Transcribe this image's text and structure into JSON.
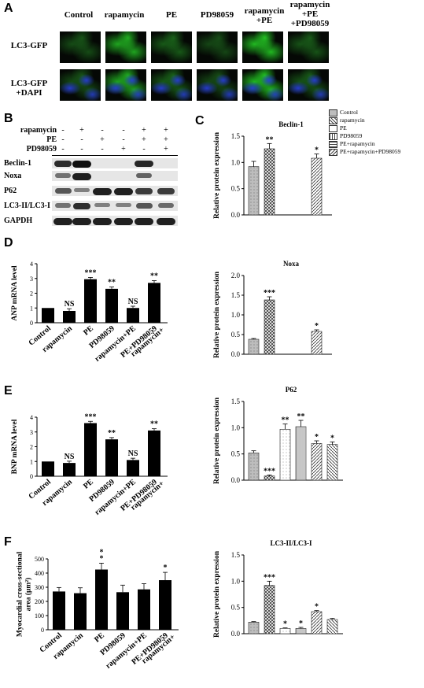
{
  "panels": {
    "A": "A",
    "B": "B",
    "C": "C",
    "D": "D",
    "E": "E",
    "F": "F"
  },
  "panelA": {
    "columns": [
      "Control",
      "rapamycin",
      "PE",
      "PD98059",
      "rapamycin\n+PE",
      "rapamycin\n+PE\n+PD98059"
    ],
    "rows": [
      "LC3-GFP",
      "LC3-GFP\n+DAPI"
    ]
  },
  "panelB": {
    "treatments": [
      {
        "name": "rapamycin",
        "signs": [
          "-",
          "+",
          "-",
          "-",
          "+",
          "+"
        ]
      },
      {
        "name": "PE",
        "signs": [
          "-",
          "-",
          "+",
          "-",
          "+",
          "+"
        ]
      },
      {
        "name": "PD98059",
        "signs": [
          "-",
          "-",
          "-",
          "+",
          "-",
          "+"
        ]
      }
    ],
    "bands": [
      "Beclin-1",
      "Noxa",
      "P62",
      "LC3-II/LC3-I",
      "GAPDH"
    ]
  },
  "legend": {
    "items": [
      "Control",
      "rapamycin",
      "PE",
      "PD98059",
      "PE+rapamycin",
      "PE+rapamycin+PD98059"
    ],
    "colors": [
      "#bdbdbd",
      "#666666",
      "#ffffff",
      "#ffffff",
      "#ffffff",
      "#ffffff"
    ]
  },
  "chart_data": [
    {
      "id": "C-beclin",
      "type": "bar",
      "title": "Beclin-1",
      "ylabel": "Relative protein expression",
      "ylim": [
        0,
        1.5
      ],
      "yticks": [
        "0.0",
        "0.5",
        "1.0",
        "1.5"
      ],
      "categories": [
        "Control",
        "rapamycin",
        "PE",
        "PD98059",
        "PE+rapamycin",
        "PE+rapamycin+PD98059"
      ],
      "values": [
        0.92,
        1.26,
        0,
        0,
        1.08,
        0
      ],
      "errors": [
        0.1,
        0.1,
        0,
        0,
        0.08,
        0
      ],
      "significance": [
        "",
        "**",
        "",
        "",
        "*",
        ""
      ]
    },
    {
      "id": "C-noxa",
      "type": "bar",
      "title": "Noxa",
      "ylabel": "Relative protein expression",
      "ylim": [
        0,
        2.0
      ],
      "yticks": [
        "0.0",
        "0.5",
        "1.0",
        "1.5",
        "2.0"
      ],
      "categories": [
        "Control",
        "rapamycin",
        "PE",
        "PD98059",
        "PE+rapamycin",
        "PE+rapamycin+PD98059"
      ],
      "values": [
        0.38,
        1.38,
        0,
        0,
        0.58,
        0
      ],
      "errors": [
        0.02,
        0.08,
        0,
        0,
        0.04,
        0
      ],
      "significance": [
        "",
        "***",
        "",
        "",
        "*",
        ""
      ]
    },
    {
      "id": "C-p62",
      "type": "bar",
      "title": "P62",
      "ylabel": "Relative protein expression",
      "ylim": [
        0,
        1.5
      ],
      "yticks": [
        "0.0",
        "0.5",
        "1.0",
        "1.5"
      ],
      "categories": [
        "Control",
        "rapamycin",
        "PE",
        "PD98059",
        "PE+rapamycin",
        "PE+rapamycin+PD98059"
      ],
      "values": [
        0.52,
        0.08,
        0.97,
        1.02,
        0.7,
        0.68
      ],
      "errors": [
        0.04,
        0.02,
        0.1,
        0.12,
        0.05,
        0.05
      ],
      "significance": [
        "",
        "***",
        "**",
        "**",
        "*",
        "*"
      ]
    },
    {
      "id": "C-lc3",
      "type": "bar",
      "title": "LC3-II/LC3-I",
      "ylabel": "Relative protein expression",
      "ylim": [
        0,
        1.5
      ],
      "yticks": [
        "0.0",
        "0.5",
        "1.0",
        "1.5"
      ],
      "categories": [
        "Control",
        "rapamycin",
        "PE",
        "PD98059",
        "PE+rapamycin",
        "PE+rapamycin+PD98059"
      ],
      "values": [
        0.22,
        0.92,
        0.1,
        0.1,
        0.42,
        0.27
      ],
      "errors": [
        0.01,
        0.08,
        0.01,
        0.02,
        0.02,
        0.02
      ],
      "significance": [
        "",
        "***",
        "*",
        "*",
        "*",
        ""
      ]
    },
    {
      "id": "D",
      "type": "bar",
      "title": "",
      "ylabel": "ANP mRNA level",
      "ylim": [
        0,
        4
      ],
      "yticks": [
        "0",
        "1",
        "2",
        "3",
        "4"
      ],
      "categories": [
        "Control",
        "rapamycin",
        "PE",
        "PD98059",
        "rapamycin+PE",
        "PE+PD98059\nrapamycin+"
      ],
      "values": [
        1.0,
        0.8,
        2.95,
        2.3,
        1.0,
        2.7
      ],
      "errors": [
        0,
        0.15,
        0.12,
        0.12,
        0.12,
        0.15
      ],
      "significance": [
        "",
        "NS",
        "***",
        "**",
        "NS",
        "**"
      ]
    },
    {
      "id": "E",
      "type": "bar",
      "title": "",
      "ylabel": "BNP mRNA level",
      "ylim": [
        0,
        4
      ],
      "yticks": [
        "0",
        "1",
        "2",
        "3",
        "4"
      ],
      "categories": [
        "Control",
        "rapamycin",
        "PE",
        "PD98059",
        "rapamycin+PE",
        "PE+PD98059\nrapamycin+"
      ],
      "values": [
        1.0,
        0.9,
        3.6,
        2.5,
        1.1,
        3.1
      ],
      "errors": [
        0,
        0.12,
        0.12,
        0.12,
        0.12,
        0.12
      ],
      "significance": [
        "",
        "NS",
        "***",
        "**",
        "NS",
        "**"
      ]
    },
    {
      "id": "F",
      "type": "bar",
      "title": "",
      "ylabel": "Myocardial cross-sectional area (μm²)",
      "ylim": [
        0,
        500
      ],
      "yticks": [
        "0",
        "100",
        "200",
        "300",
        "400",
        "500"
      ],
      "categories": [
        "Control",
        "rapamycin",
        "PE",
        "PD98059",
        "rapamycin+PE",
        "PE+PD98059\nrapamycin+"
      ],
      "values": [
        270,
        258,
        425,
        265,
        285,
        350
      ],
      "errors": [
        28,
        38,
        45,
        50,
        40,
        55
      ],
      "significance": [
        "",
        "",
        "*\n*",
        "",
        "",
        "*"
      ]
    }
  ]
}
